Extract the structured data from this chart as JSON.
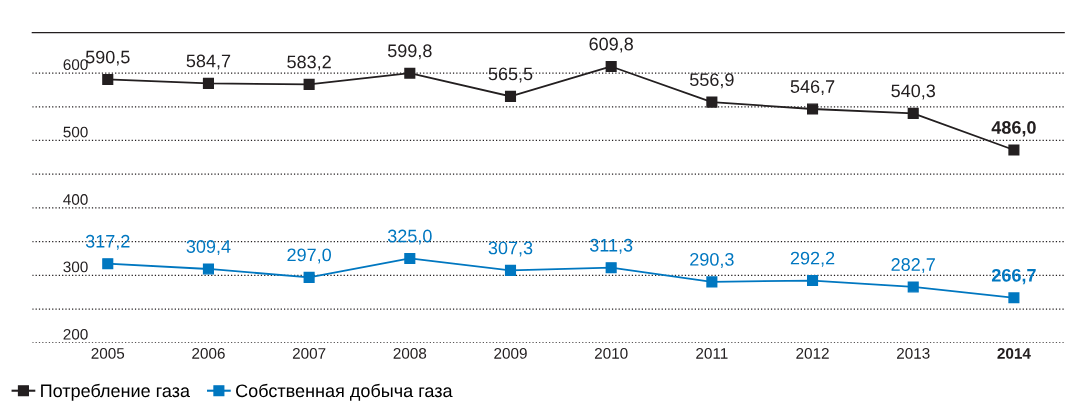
{
  "chart_data": {
    "type": "line",
    "categories": [
      "2005",
      "2006",
      "2007",
      "2008",
      "2009",
      "2010",
      "2011",
      "2012",
      "2013",
      "2014"
    ],
    "series": [
      {
        "name": "Потребление газа",
        "color": "#231f20",
        "values": [
          590.5,
          584.7,
          583.2,
          599.8,
          565.5,
          609.8,
          556.9,
          546.7,
          540.3,
          486.0
        ],
        "value_labels": [
          "590,5",
          "584,7",
          "583,2",
          "599,8",
          "565,5",
          "609,8",
          "556,9",
          "546,7",
          "540,3",
          "486,0"
        ]
      },
      {
        "name": "Собственная добыча газа",
        "color": "#0077c0",
        "values": [
          317.2,
          309.4,
          297.0,
          325.0,
          307.3,
          311.3,
          290.3,
          292.2,
          282.7,
          266.7
        ],
        "value_labels": [
          "317,2",
          "309,4",
          "297,0",
          "325,0",
          "307,3",
          "311,3",
          "290,3",
          "292,2",
          "282,7",
          "266,7"
        ]
      }
    ],
    "ylim": [
      200,
      660
    ],
    "yticks": [
      200,
      {
        "value": 250,
        "label": null
      },
      300,
      {
        "value": 350,
        "label": null
      },
      400,
      {
        "value": 450,
        "label": null
      },
      500,
      {
        "value": 550,
        "label": null
      },
      600
    ],
    "grid": "y",
    "legend": "bottom left",
    "marker": "square",
    "line_style": "solid"
  }
}
